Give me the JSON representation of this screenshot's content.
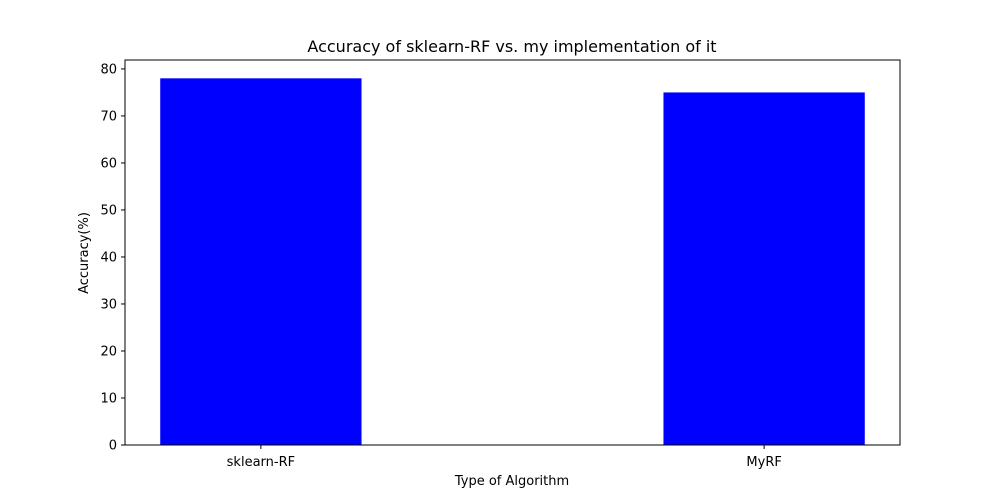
{
  "chart_data": {
    "type": "bar",
    "title": "Accuracy of sklearn-RF vs. my implementation of it",
    "xlabel": "Type of Algorithm",
    "ylabel": "Accuracy(%)",
    "categories": [
      "sklearn-RF",
      "MyRF"
    ],
    "values": [
      78,
      75
    ],
    "ylim": [
      0,
      81.9
    ],
    "yticks": [
      0,
      10,
      20,
      30,
      40,
      50,
      60,
      70,
      80
    ],
    "grid": false,
    "legend": "none",
    "colors": {
      "bar": "#0000ff",
      "axes": "#000000",
      "background": "#ffffff"
    }
  }
}
